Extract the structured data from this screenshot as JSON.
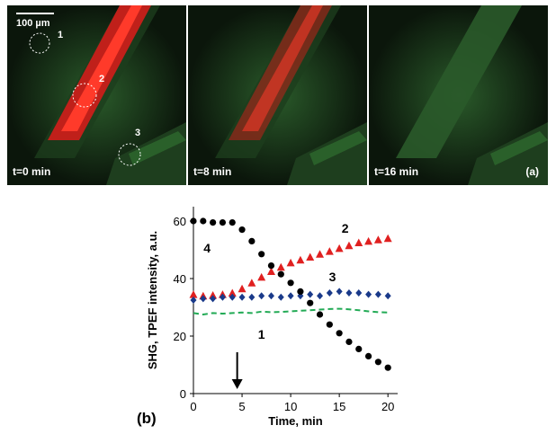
{
  "micrograph": {
    "scale_bar": "100 µm",
    "panel_label": "(a)",
    "frames": [
      {
        "time": "t=0 min",
        "red": 1.0
      },
      {
        "time": "t=8 min",
        "red": 0.55
      },
      {
        "time": "t=16 min",
        "red": 0.0
      }
    ],
    "roi_labels": [
      "1",
      "2",
      "3"
    ]
  },
  "chart_panel_label": "(b)",
  "chart_data": {
    "type": "scatter",
    "xlabel": "Time, min",
    "ylabel": "SHG, TPEF intensity, a.u.",
    "xlim": [
      0,
      21
    ],
    "ylim": [
      0,
      65
    ],
    "xticks": [
      "0",
      "5",
      "10",
      "15",
      "20"
    ],
    "yticks": [
      "0",
      "20",
      "40",
      "60"
    ],
    "arrow_at_x": 4.5,
    "series": [
      {
        "name": "1",
        "color": "#22aa55",
        "style": "dashed",
        "x": [
          0,
          1,
          2,
          3,
          4,
          5,
          6,
          7,
          8,
          9,
          10,
          11,
          12,
          13,
          14,
          15,
          16,
          17,
          18,
          19,
          20
        ],
        "y": [
          28,
          27.5,
          28,
          27.8,
          28,
          28.2,
          28,
          28.5,
          28.3,
          28.4,
          28.6,
          28.8,
          29,
          29.2,
          29.4,
          29.5,
          29.3,
          29,
          28.6,
          28.3,
          28.2
        ]
      },
      {
        "name": "2",
        "color": "#e02020",
        "style": "triangle",
        "x": [
          0,
          1,
          2,
          3,
          4,
          5,
          6,
          7,
          8,
          9,
          10,
          11,
          12,
          13,
          14,
          15,
          16,
          17,
          18,
          19,
          20
        ],
        "y": [
          34.5,
          34,
          34.2,
          34.5,
          35,
          36.5,
          38.5,
          40.5,
          42.5,
          44,
          45.5,
          46.5,
          47.5,
          48.5,
          49.5,
          50.5,
          51.5,
          52.5,
          53,
          53.5,
          54
        ]
      },
      {
        "name": "3",
        "color": "#1a3a8a",
        "style": "diamond",
        "x": [
          0,
          1,
          2,
          3,
          4,
          5,
          6,
          7,
          8,
          9,
          10,
          11,
          12,
          13,
          14,
          15,
          16,
          17,
          18,
          19,
          20
        ],
        "y": [
          32.5,
          33,
          33,
          33.5,
          33.5,
          33.5,
          33.5,
          34,
          34,
          33.5,
          34,
          34,
          34.5,
          34,
          35,
          35.5,
          35,
          35,
          34.5,
          34.5,
          34
        ]
      },
      {
        "name": "4",
        "color": "#000000",
        "style": "circle",
        "x": [
          0,
          1,
          2,
          3,
          4,
          5,
          6,
          7,
          8,
          9,
          10,
          11,
          12,
          13,
          14,
          15,
          16,
          17,
          18,
          19,
          20
        ],
        "y": [
          60,
          60,
          59.5,
          59.5,
          59.5,
          57,
          53,
          48.5,
          44.5,
          41.5,
          38.5,
          35.5,
          31.5,
          27.5,
          24,
          21,
          18,
          15.5,
          13,
          11,
          9
        ]
      }
    ]
  }
}
